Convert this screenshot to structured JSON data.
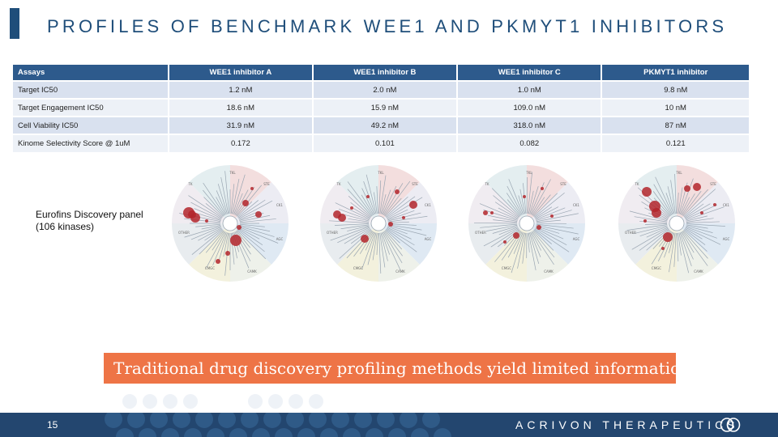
{
  "slide": {
    "title": "PROFILES OF BENCHMARK WEE1 AND PKMYT1 INHIBITORS",
    "panel_caption_line1": "Eurofins Discovery panel",
    "panel_caption_line2": "(106 kinases)",
    "banner": "Traditional drug discovery profiling methods yield limited information",
    "page_number": "15",
    "company": "ACRIVON THERAPEUTICS",
    "accent_color": "#1f4e7a",
    "banner_color": "#ee7446"
  },
  "table": {
    "headers": [
      "Assays",
      "WEE1 inhibitor A",
      "WEE1 inhibitor B",
      "WEE1 inhibitor C",
      "PKMYT1 inhibitor"
    ],
    "rows": [
      [
        "Target  IC50",
        "1.2 nM",
        "2.0 nM",
        "1.0 nM",
        "9.8 nM"
      ],
      [
        "Target Engagement IC50",
        "18.6 nM",
        "15.9 nM",
        "109.0 nM",
        "10 nM"
      ],
      [
        "Cell Viability IC50",
        "31.9 nM",
        "49.2 nM",
        "318.0 nM",
        "87 nM"
      ],
      [
        "Kinome Selectivity Score @ 1uM",
        "0.172",
        "0.101",
        "0.082",
        "0.121"
      ]
    ]
  },
  "kinome_tree": {
    "group_labels": [
      "TKL",
      "STE",
      "CK1",
      "AGC",
      "CAMK",
      "CMGC",
      "OTHER",
      "TK"
    ]
  }
}
